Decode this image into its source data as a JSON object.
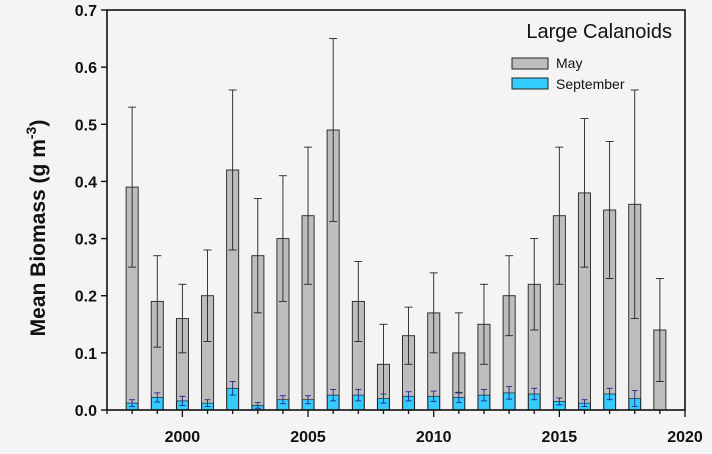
{
  "chart_data": {
    "type": "bar",
    "title": "Large Calanoids",
    "ylabel_main": "Mean Biomass (g m",
    "ylabel_sup": "-3",
    "ylabel_close": ")",
    "xlim": [
      1997,
      2020
    ],
    "ylim": [
      0,
      0.7
    ],
    "x_ticks": [
      2000,
      2005,
      2010,
      2015,
      2020
    ],
    "x_tick_labels": [
      "2000",
      "2005",
      "2010",
      "2015",
      "2020"
    ],
    "y_ticks": [
      0,
      0.1,
      0.2,
      0.3,
      0.4,
      0.5,
      0.6,
      0.7
    ],
    "y_tick_labels": [
      "0.0",
      "0.1",
      "0.2",
      "0.3",
      "0.4",
      "0.5",
      "0.6",
      "0.7"
    ],
    "legend_position": "top-right",
    "x": [
      1998,
      1999,
      2000,
      2001,
      2002,
      2003,
      2004,
      2005,
      2006,
      2007,
      2008,
      2009,
      2010,
      2011,
      2012,
      2013,
      2014,
      2015,
      2016,
      2017,
      2018,
      2019
    ],
    "series": [
      {
        "name": "May",
        "color": "#bdbdbd",
        "values": [
          0.39,
          0.19,
          0.16,
          0.2,
          0.42,
          0.27,
          0.3,
          0.34,
          0.49,
          0.19,
          0.08,
          0.13,
          0.17,
          0.1,
          0.15,
          0.2,
          0.22,
          0.34,
          0.38,
          0.35,
          0.36,
          0.14
        ],
        "errors": [
          0.14,
          0.08,
          0.06,
          0.08,
          0.14,
          0.1,
          0.11,
          0.12,
          0.16,
          0.07,
          0.07,
          0.05,
          0.07,
          0.07,
          0.07,
          0.07,
          0.08,
          0.12,
          0.13,
          0.12,
          0.2,
          0.09
        ]
      },
      {
        "name": "September",
        "color": "#33ccff",
        "values": [
          0.012,
          0.022,
          0.016,
          0.012,
          0.038,
          0.008,
          0.018,
          0.018,
          0.026,
          0.026,
          0.02,
          0.024,
          0.024,
          0.022,
          0.026,
          0.03,
          0.028,
          0.015,
          0.012,
          0.028,
          0.02,
          0.0
        ],
        "errors": [
          0.006,
          0.008,
          0.008,
          0.006,
          0.012,
          0.005,
          0.007,
          0.007,
          0.01,
          0.01,
          0.008,
          0.008,
          0.009,
          0.009,
          0.01,
          0.011,
          0.01,
          0.006,
          0.006,
          0.01,
          0.014,
          0.0
        ]
      }
    ]
  }
}
